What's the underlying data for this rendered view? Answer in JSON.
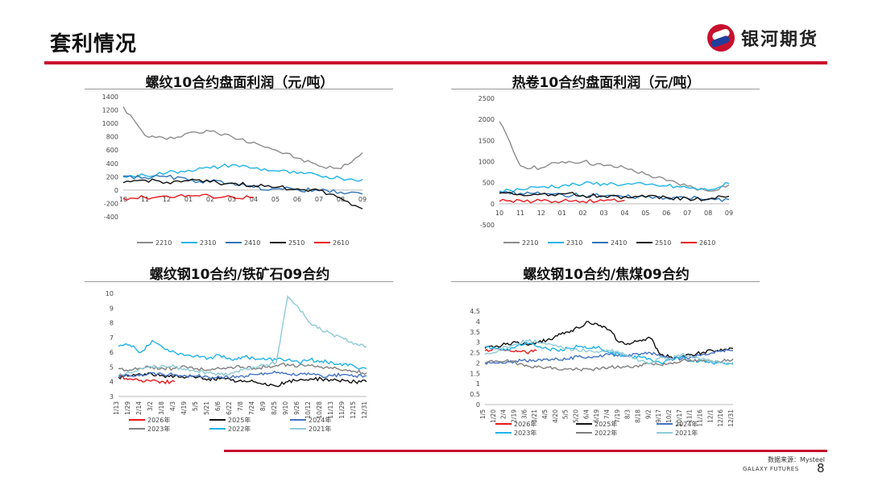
{
  "header": {
    "title": "套利情况",
    "logo_text": "银河期货",
    "accent_color": "#c8102e"
  },
  "footer": {
    "source": "数据来源：Mysteel",
    "company": "GALAXY FUTURES",
    "page": "8"
  },
  "chart_data": [
    {
      "type": "line",
      "title": "螺纹10合约盘面利润（元/吨）",
      "categories": [
        "10",
        "11",
        "12",
        "01",
        "02",
        "03",
        "04",
        "05",
        "06",
        "07",
        "08",
        "09"
      ],
      "ylim": [
        -400,
        1400
      ],
      "yticks": [
        "1400",
        "1200",
        "1000",
        "800",
        "600",
        "400",
        "200",
        "0",
        "-200",
        "-400"
      ],
      "series": [
        {
          "name": "2210",
          "color": "#8c8c8c",
          "values": [
            1250,
            820,
            760,
            860,
            880,
            800,
            720,
            600,
            480,
            360,
            320,
            560
          ]
        },
        {
          "name": "2310",
          "color": "#22b3e8",
          "values": [
            200,
            220,
            260,
            300,
            330,
            380,
            330,
            290,
            250,
            220,
            180,
            160
          ]
        },
        {
          "name": "2410",
          "color": "#2e75b6",
          "values": [
            210,
            190,
            200,
            150,
            130,
            110,
            40,
            20,
            10,
            -10,
            -30,
            -60
          ]
        },
        {
          "name": "2510",
          "color": "#111111",
          "values": [
            110,
            150,
            120,
            140,
            120,
            100,
            70,
            40,
            20,
            0,
            -120,
            -280
          ]
        },
        {
          "name": "2610",
          "color": "#e8191e",
          "values": [
            -120,
            -110,
            -90,
            -80,
            -90,
            -100,
            -110,
            null,
            null,
            null,
            null,
            null
          ]
        }
      ]
    },
    {
      "type": "line",
      "title": "热卷10合约盘面利润（元/吨）",
      "categories": [
        "10",
        "11",
        "12",
        "01",
        "02",
        "03",
        "04",
        "05",
        "06",
        "07",
        "08",
        "09"
      ],
      "ylim": [
        -500,
        2500
      ],
      "yticks": [
        "2500",
        "2000",
        "1500",
        "1000",
        "500",
        "0",
        "-500"
      ],
      "series": [
        {
          "name": "2210",
          "color": "#8c8c8c",
          "values": [
            1950,
            900,
            850,
            1000,
            1000,
            900,
            850,
            700,
            550,
            420,
            300,
            450
          ]
        },
        {
          "name": "2310",
          "color": "#22b3e8",
          "values": [
            300,
            340,
            400,
            430,
            470,
            480,
            460,
            450,
            420,
            380,
            320,
            480
          ]
        },
        {
          "name": "2410",
          "color": "#2e75b6",
          "values": [
            280,
            250,
            230,
            220,
            200,
            180,
            160,
            150,
            140,
            130,
            120,
            100
          ]
        },
        {
          "name": "2510",
          "color": "#111111",
          "values": [
            250,
            220,
            230,
            240,
            200,
            180,
            170,
            160,
            150,
            130,
            100,
            180
          ]
        },
        {
          "name": "2610",
          "color": "#e8191e",
          "values": [
            60,
            80,
            70,
            60,
            60,
            70,
            80,
            null,
            null,
            null,
            null,
            null
          ]
        }
      ]
    },
    {
      "type": "line",
      "title": "螺纹钢10合约/铁矿石09合约",
      "categories": [
        "1/13",
        "1/29",
        "2/14",
        "3/2",
        "3/18",
        "4/3",
        "4/19",
        "5/5",
        "5/21",
        "6/6",
        "6/22",
        "7/8",
        "7/24",
        "8/9",
        "8/25",
        "9/10",
        "9/26",
        "10/12",
        "10/28",
        "11/13",
        "11/29",
        "12/15",
        "12/31"
      ],
      "ylim": [
        3,
        10
      ],
      "yticks": [
        "10",
        "9",
        "8",
        "7",
        "6",
        "5",
        "4",
        "3"
      ],
      "series": [
        {
          "name": "2026年",
          "color": "#e8191e",
          "values": [
            4.4,
            4.2,
            4.1,
            4.1,
            4.0,
            4.0,
            null,
            null,
            null,
            null,
            null,
            null,
            null,
            null,
            null,
            null,
            null,
            null,
            null,
            null,
            null,
            null,
            null
          ]
        },
        {
          "name": "2025年",
          "color": "#111111",
          "values": [
            4.3,
            4.4,
            4.5,
            4.5,
            4.4,
            4.4,
            4.3,
            4.3,
            4.2,
            4.2,
            4.1,
            4.0,
            4.0,
            3.9,
            3.7,
            4.0,
            4.1,
            4.2,
            4.2,
            4.1,
            4.1,
            4.0,
            4.0
          ]
        },
        {
          "name": "2024年",
          "color": "#4472c4",
          "values": [
            4.4,
            4.4,
            4.5,
            4.6,
            4.5,
            4.5,
            4.4,
            4.4,
            4.3,
            4.3,
            4.3,
            4.4,
            4.5,
            4.6,
            4.6,
            4.5,
            4.5,
            4.5,
            4.4,
            4.4,
            4.5,
            4.4,
            4.4
          ]
        },
        {
          "name": "2023年",
          "color": "#7f7f7f",
          "values": [
            4.9,
            4.8,
            4.9,
            5.0,
            4.9,
            4.9,
            5.0,
            4.9,
            4.8,
            4.9,
            5.0,
            5.0,
            4.9,
            5.0,
            5.1,
            5.2,
            5.1,
            5.1,
            5.0,
            4.9,
            4.8,
            4.7,
            4.6
          ]
        },
        {
          "name": "2022年",
          "color": "#22b3e8",
          "values": [
            6.4,
            6.5,
            6.0,
            6.8,
            6.3,
            6.0,
            5.8,
            5.8,
            5.6,
            5.8,
            5.5,
            5.7,
            5.6,
            5.5,
            5.5,
            5.5,
            5.3,
            5.5,
            5.4,
            5.3,
            5.2,
            5.0,
            4.9
          ]
        },
        {
          "name": "2021年",
          "color": "#8fcbd8",
          "values": [
            4.4,
            4.6,
            4.9,
            5.0,
            5.1,
            5.0,
            4.8,
            4.7,
            4.6,
            4.5,
            4.6,
            4.8,
            5.0,
            5.1,
            5.3,
            9.8,
            9.0,
            8.0,
            7.5,
            7.2,
            6.9,
            6.6,
            6.4
          ]
        }
      ]
    },
    {
      "type": "line",
      "title": "螺纹钢10合约/焦煤09合约",
      "categories": [
        "1/5",
        "1/20",
        "2/4",
        "2/19",
        "3/6",
        "3/21",
        "4/5",
        "4/20",
        "5/5",
        "5/20",
        "6/4",
        "6/19",
        "7/4",
        "7/19",
        "8/3",
        "8/18",
        "9/2",
        "9/17",
        "10/2",
        "10/17",
        "11/1",
        "11/16",
        "12/1",
        "12/16",
        "12/31"
      ],
      "ylim": [
        0,
        4.5
      ],
      "yticks": [
        "4.5",
        "4",
        "3.5",
        "3",
        "2.5",
        "2",
        "1.5",
        "1",
        "0.5",
        "0"
      ],
      "series": [
        {
          "name": "2026年",
          "color": "#e8191e",
          "values": [
            2.6,
            2.7,
            2.6,
            2.6,
            2.5,
            2.6,
            null,
            null,
            null,
            null,
            null,
            null,
            null,
            null,
            null,
            null,
            null,
            null,
            null,
            null,
            null,
            null,
            null,
            null,
            null
          ]
        },
        {
          "name": "2025年",
          "color": "#111111",
          "values": [
            2.7,
            2.8,
            2.9,
            3.0,
            2.9,
            3.0,
            3.1,
            3.3,
            3.5,
            3.7,
            4.0,
            3.8,
            3.6,
            3.0,
            2.9,
            3.1,
            3.2,
            2.4,
            2.3,
            2.3,
            2.4,
            2.5,
            2.6,
            2.6,
            2.7
          ]
        },
        {
          "name": "2024年",
          "color": "#4472c4",
          "values": [
            2.0,
            2.0,
            2.0,
            2.1,
            2.1,
            2.1,
            2.2,
            2.2,
            2.2,
            2.3,
            2.3,
            2.3,
            2.4,
            2.4,
            2.4,
            2.4,
            2.5,
            2.3,
            2.2,
            2.2,
            2.3,
            2.4,
            2.5,
            2.6,
            2.6
          ]
        },
        {
          "name": "2023年",
          "color": "#22b3e8",
          "values": [
            2.8,
            2.7,
            2.6,
            2.8,
            3.0,
            2.8,
            2.7,
            2.6,
            2.7,
            2.8,
            2.7,
            2.8,
            2.5,
            2.4,
            2.3,
            2.3,
            2.2,
            2.0,
            2.2,
            2.3,
            2.1,
            2.1,
            2.0,
            2.0,
            2.0
          ]
        },
        {
          "name": "2022年",
          "color": "#7f7f7f",
          "values": [
            2.0,
            2.1,
            2.1,
            2.0,
            1.9,
            1.8,
            1.8,
            1.7,
            1.7,
            1.7,
            1.7,
            1.7,
            1.8,
            1.8,
            1.8,
            1.9,
            2.0,
            1.9,
            2.0,
            2.1,
            2.1,
            2.1,
            2.1,
            2.1,
            2.2
          ]
        },
        {
          "name": "2021年",
          "color": "#8fcbd8",
          "values": [
            2.4,
            2.5,
            2.8,
            2.9,
            3.1,
            3.0,
            2.9,
            2.8,
            2.7,
            2.6,
            2.6,
            2.5,
            2.6,
            2.5,
            2.3,
            2.1,
            2.0,
            2.3,
            2.2,
            2.4,
            2.3,
            2.2,
            2.1,
            2.0,
            1.9
          ]
        }
      ]
    }
  ]
}
